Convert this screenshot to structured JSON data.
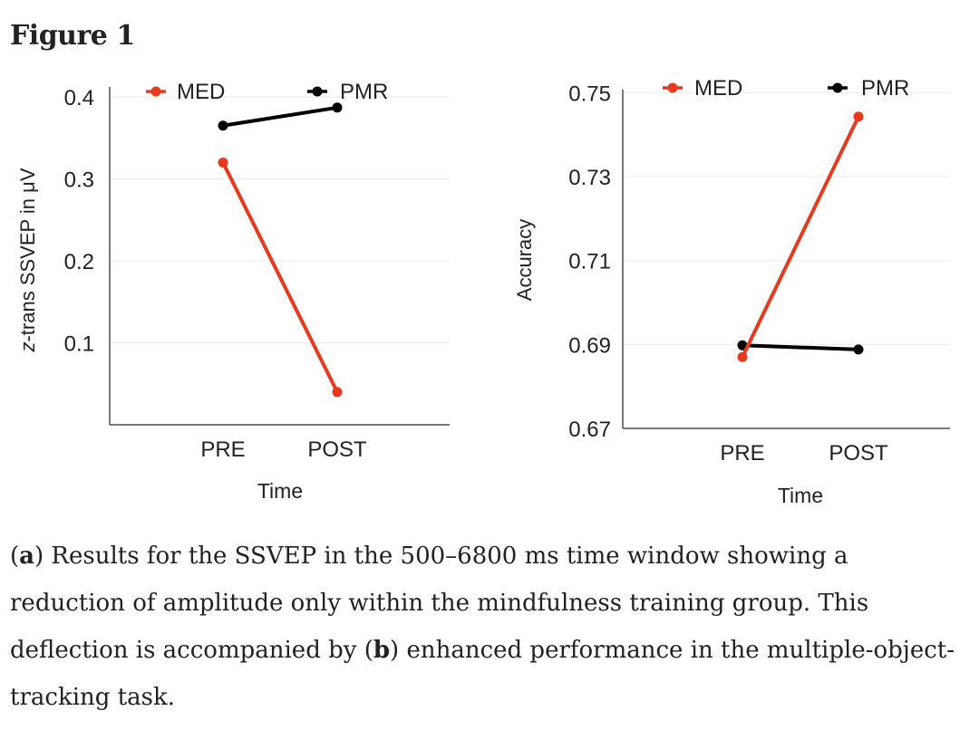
{
  "figure_title": "Figure 1",
  "colors": {
    "med": "#e8391d",
    "pmr": "#000000",
    "grid": "#ebebeb",
    "axis": "#4d4d4d"
  },
  "chart_data": [
    {
      "type": "line",
      "title": "",
      "xlabel": "Time",
      "ylabel": "z-trans SSVEP in μV",
      "ylabel_italic": "z",
      "ylabel_rest": "-trans SSVEP in μV",
      "categories": [
        "PRE",
        "POST"
      ],
      "ylim": [
        0.0,
        0.41
      ],
      "yticks": [
        0.1,
        0.2,
        0.3,
        0.4
      ],
      "ytick_labels": [
        "0.1",
        "0.2",
        "0.3",
        "0.4"
      ],
      "legend": [
        "MED",
        "PMR"
      ],
      "legend_position": "top",
      "series": [
        {
          "name": "MED",
          "color": "#e8391d",
          "values": [
            0.32,
            0.04
          ]
        },
        {
          "name": "PMR",
          "color": "#000000",
          "values": [
            0.365,
            0.387
          ]
        }
      ]
    },
    {
      "type": "line",
      "title": "",
      "xlabel": "Time",
      "ylabel": "Accuracy",
      "categories": [
        "PRE",
        "POST"
      ],
      "ylim": [
        0.67,
        0.7503
      ],
      "yticks": [
        0.67,
        0.69,
        0.71,
        0.73,
        0.75
      ],
      "ytick_labels": [
        "0.67",
        "0.69",
        "0.71",
        "0.73",
        "0.75"
      ],
      "legend": [
        "MED",
        "PMR"
      ],
      "legend_position": "top",
      "series": [
        {
          "name": "MED",
          "color": "#e8391d",
          "values": [
            0.687,
            0.7443
          ]
        },
        {
          "name": "PMR",
          "color": "#000000",
          "values": [
            0.6898,
            0.6888
          ]
        }
      ]
    }
  ],
  "caption": {
    "a_label": "a",
    "a_text": " Results for the SSVEP in the 500–6800 ms time window showing a reduction of amplitude only within the mindfulness training group. This deflection is accompanied by (",
    "b_label": "b",
    "b_text": " enhanced performance in the multiple-object-tracking task."
  }
}
